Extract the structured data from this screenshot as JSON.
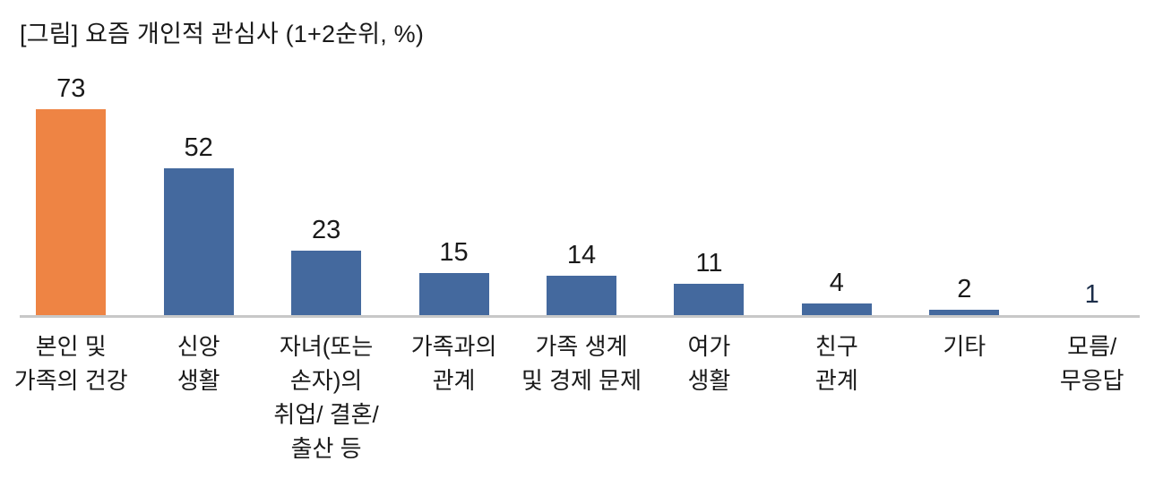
{
  "chart_data": {
    "type": "bar",
    "title": "[그림] 요즘 개인적 관심사 (1+2순위, %)",
    "unit": "%",
    "ylim": [
      0,
      80
    ],
    "grid": false,
    "legend": "none",
    "xlabel": "",
    "ylabel": "",
    "categories": [
      "본인 및 가족의 건강",
      "신앙 생활",
      "자녀(또는 손자)의 취업/ 결혼/ 출산 등",
      "가족과의 관계",
      "가족 생계 및 경제 문제",
      "여가 생활",
      "친구 관계",
      "기타",
      "모름/ 무응답"
    ],
    "values": [
      73,
      52,
      23,
      15,
      14,
      11,
      4,
      2,
      1
    ],
    "bars": [
      {
        "label_lines": [
          "본인 및",
          "가족의 건강"
        ],
        "value": 73,
        "bar_color": "#ee8444",
        "value_color": "#1a1a1a"
      },
      {
        "label_lines": [
          "신앙",
          "생활"
        ],
        "value": 52,
        "bar_color": "#44699e",
        "value_color": "#1a1a1a"
      },
      {
        "label_lines": [
          "자녀(또는",
          "손자)의",
          "취업/ 결혼/",
          "출산 등"
        ],
        "value": 23,
        "bar_color": "#44699e",
        "value_color": "#1a1a1a"
      },
      {
        "label_lines": [
          "가족과의",
          "관계"
        ],
        "value": 15,
        "bar_color": "#44699e",
        "value_color": "#1a1a1a"
      },
      {
        "label_lines": [
          "가족 생계",
          "및 경제 문제"
        ],
        "value": 14,
        "bar_color": "#44699e",
        "value_color": "#1a1a1a"
      },
      {
        "label_lines": [
          "여가",
          "생활"
        ],
        "value": 11,
        "bar_color": "#44699e",
        "value_color": "#1a1a1a"
      },
      {
        "label_lines": [
          "친구",
          "관계"
        ],
        "value": 4,
        "bar_color": "#44699e",
        "value_color": "#1a1a1a"
      },
      {
        "label_lines": [
          "기타"
        ],
        "value": 2,
        "bar_color": "#44699e",
        "value_color": "#1a1a1a"
      },
      {
        "label_lines": [
          "모름/",
          "무응답"
        ],
        "value": 1,
        "bar_color": "#44699e",
        "value_color": "#1c2e4a"
      }
    ],
    "colors": {
      "highlight_bar": "#ee8444",
      "series_bar": "#44699e",
      "axis_line": "#c8c8c8",
      "text": "#1a1a1a",
      "small_value_label": "#1c2e4a",
      "background": "#ffffff"
    }
  }
}
